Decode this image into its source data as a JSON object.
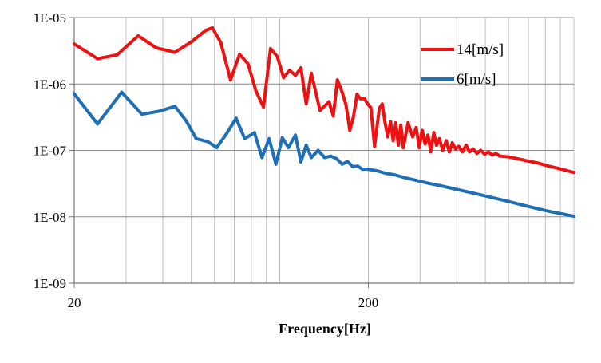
{
  "chart_data": {
    "type": "line",
    "title": "",
    "xlabel": "Frequency[Hz]",
    "ylabel": "",
    "x_scale": "log",
    "y_scale": "log",
    "xlim": [
      20,
      1000
    ],
    "ylim": [
      1e-09,
      1e-05
    ],
    "x_tick_values": [
      20,
      200
    ],
    "x_tick_labels": [
      "20",
      "200"
    ],
    "y_tick_values": [
      1e-05,
      1e-06,
      1e-07,
      1e-08,
      1e-09
    ],
    "y_tick_labels": [
      "1E-05",
      "1E-06",
      "1E-07",
      "1E-08",
      "1E-09"
    ],
    "grid": {
      "x_major": true,
      "x_minor": true,
      "y_major": true
    },
    "legend_position": "top-right",
    "series": [
      {
        "name": "14[m/s]",
        "color": "#ee1111",
        "points": [
          [
            20,
            4e-06
          ],
          [
            24,
            2.4e-06
          ],
          [
            28,
            2.75e-06
          ],
          [
            33,
            5.3e-06
          ],
          [
            38,
            3.5e-06
          ],
          [
            44,
            3e-06
          ],
          [
            50,
            4.3e-06
          ],
          [
            56,
            6.4e-06
          ],
          [
            59,
            7e-06
          ],
          [
            63,
            4.2e-06
          ],
          [
            68,
            1.15e-06
          ],
          [
            73,
            2.8e-06
          ],
          [
            78,
            2e-06
          ],
          [
            83,
            7.8e-07
          ],
          [
            88,
            4.5e-07
          ],
          [
            93,
            3.4e-06
          ],
          [
            98,
            2.6e-06
          ],
          [
            103,
            1.25e-06
          ],
          [
            108,
            1.6e-06
          ],
          [
            113,
            1.35e-06
          ],
          [
            118,
            1.75e-06
          ],
          [
            123,
            5e-07
          ],
          [
            128,
            1.45e-06
          ],
          [
            137,
            4e-07
          ],
          [
            147,
            5.4e-07
          ],
          [
            152,
            3.3e-07
          ],
          [
            157,
            1.15e-06
          ],
          [
            163,
            7.5e-07
          ],
          [
            168,
            4.8e-07
          ],
          [
            173,
            2e-07
          ],
          [
            178,
            3.2e-07
          ],
          [
            183,
            7e-07
          ],
          [
            188,
            6e-07
          ],
          [
            194,
            6e-07
          ],
          [
            199,
            5e-07
          ],
          [
            204,
            4.4e-07
          ],
          [
            210,
            1.15e-07
          ],
          [
            218,
            4.3e-07
          ],
          [
            223,
            5e-07
          ],
          [
            228,
            2.6e-07
          ],
          [
            233,
            1.6e-07
          ],
          [
            238,
            2.7e-07
          ],
          [
            243,
            1.4e-07
          ],
          [
            248,
            2.6e-07
          ],
          [
            253,
            1.2e-07
          ],
          [
            258,
            2.4e-07
          ],
          [
            263,
            1.1e-07
          ],
          [
            273,
            2.6e-07
          ],
          [
            283,
            1.6e-07
          ],
          [
            291,
            2.2e-07
          ],
          [
            298,
            1.1e-07
          ],
          [
            305,
            2e-07
          ],
          [
            312,
            1.25e-07
          ],
          [
            319,
            1.7e-07
          ],
          [
            326,
            9.5e-08
          ],
          [
            334,
            1.85e-07
          ],
          [
            341,
            1.2e-07
          ],
          [
            349,
            1.5e-07
          ],
          [
            358,
            1e-07
          ],
          [
            368,
            1.4e-07
          ],
          [
            377,
            9.5e-08
          ],
          [
            386,
            1.3e-07
          ],
          [
            396,
            1.05e-07
          ],
          [
            406,
            1.15e-07
          ],
          [
            418,
            9.5e-08
          ],
          [
            430,
            1.2e-07
          ],
          [
            442,
            9.5e-08
          ],
          [
            455,
            1.05e-07
          ],
          [
            468,
            9e-08
          ],
          [
            482,
            1e-07
          ],
          [
            497,
            8.8e-08
          ],
          [
            512,
            9.5e-08
          ],
          [
            527,
            8.5e-08
          ],
          [
            543,
            9e-08
          ],
          [
            560,
            8.2e-08
          ],
          [
            600,
            8e-08
          ],
          [
            650,
            7.4e-08
          ],
          [
            700,
            6.9e-08
          ],
          [
            760,
            6.4e-08
          ],
          [
            820,
            5.8e-08
          ],
          [
            880,
            5.4e-08
          ],
          [
            940,
            5e-08
          ],
          [
            1000,
            4.65e-08
          ]
        ]
      },
      {
        "name": "6[m/s]",
        "color": "#1f6fb6",
        "points": [
          [
            20,
            7.1e-07
          ],
          [
            24,
            2.5e-07
          ],
          [
            29,
            7.5e-07
          ],
          [
            34,
            3.5e-07
          ],
          [
            39,
            3.9e-07
          ],
          [
            44,
            4.6e-07
          ],
          [
            48,
            2.8e-07
          ],
          [
            52,
            1.5e-07
          ],
          [
            57,
            1.35e-07
          ],
          [
            61,
            1.1e-07
          ],
          [
            66,
            1.8e-07
          ],
          [
            71,
            3.05e-07
          ],
          [
            76,
            1.5e-07
          ],
          [
            82,
            1.85e-07
          ],
          [
            87,
            7.8e-08
          ],
          [
            92,
            1.5e-07
          ],
          [
            97,
            6.2e-08
          ],
          [
            102,
            1.55e-07
          ],
          [
            107,
            1.1e-07
          ],
          [
            113,
            1.7e-07
          ],
          [
            118,
            6.7e-08
          ],
          [
            123,
            1.2e-07
          ],
          [
            128,
            7.8e-08
          ],
          [
            135,
            1e-07
          ],
          [
            142,
            7.8e-08
          ],
          [
            149,
            8.2e-08
          ],
          [
            156,
            7.5e-08
          ],
          [
            163,
            6.2e-08
          ],
          [
            170,
            6.8e-08
          ],
          [
            177,
            5.7e-08
          ],
          [
            184,
            5.8e-08
          ],
          [
            191,
            5.2e-08
          ],
          [
            200,
            5.2e-08
          ],
          [
            215,
            4.9e-08
          ],
          [
            230,
            4.5e-08
          ],
          [
            245,
            4.3e-08
          ],
          [
            265,
            3.9e-08
          ],
          [
            290,
            3.55e-08
          ],
          [
            320,
            3.2e-08
          ],
          [
            350,
            2.95e-08
          ],
          [
            390,
            2.65e-08
          ],
          [
            430,
            2.4e-08
          ],
          [
            480,
            2.15e-08
          ],
          [
            540,
            1.9e-08
          ],
          [
            600,
            1.7e-08
          ],
          [
            670,
            1.5e-08
          ],
          [
            750,
            1.33e-08
          ],
          [
            830,
            1.2e-08
          ],
          [
            920,
            1.1e-08
          ],
          [
            1000,
            1.02e-08
          ]
        ]
      }
    ]
  }
}
